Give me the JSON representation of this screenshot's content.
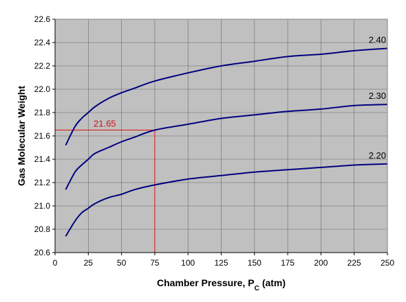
{
  "chart_data": {
    "type": "line",
    "title": "",
    "xlabel": "Chamber Pressure, P",
    "xlabel_subscript": "C",
    "xlabel_suffix": "(atm)",
    "ylabel": "Gas Molecular Weight",
    "xlim": [
      0,
      250
    ],
    "ylim": [
      20.6,
      22.6
    ],
    "xticks": [
      "0",
      "25",
      "50",
      "75",
      "100",
      "125",
      "150",
      "175",
      "200",
      "225",
      "250"
    ],
    "yticks": [
      "20.6",
      "20.8",
      "21.0",
      "21.2",
      "21.4",
      "21.6",
      "21.8",
      "22.0",
      "22.2",
      "22.4",
      "22.6"
    ],
    "grid": true,
    "plot_background": "#c0c0c0",
    "series_color": "#000080",
    "series": [
      {
        "name": "2.40",
        "x": [
          8,
          15,
          20,
          25,
          30,
          40,
          50,
          60,
          75,
          100,
          125,
          150,
          175,
          200,
          225,
          250
        ],
        "y": [
          21.52,
          21.68,
          21.75,
          21.8,
          21.85,
          21.92,
          21.97,
          22.01,
          22.07,
          22.14,
          22.2,
          22.24,
          22.28,
          22.3,
          22.33,
          22.35
        ]
      },
      {
        "name": "2.30",
        "x": [
          8,
          15,
          20,
          25,
          30,
          40,
          50,
          60,
          75,
          100,
          125,
          150,
          175,
          200,
          225,
          250
        ],
        "y": [
          21.14,
          21.29,
          21.35,
          21.4,
          21.45,
          21.5,
          21.55,
          21.59,
          21.65,
          21.7,
          21.75,
          21.78,
          21.81,
          21.83,
          21.86,
          21.87
        ]
      },
      {
        "name": "2.20",
        "x": [
          8,
          15,
          20,
          25,
          30,
          40,
          50,
          60,
          75,
          100,
          125,
          150,
          175,
          200,
          225,
          250
        ],
        "y": [
          20.74,
          20.87,
          20.94,
          20.98,
          21.02,
          21.07,
          21.1,
          21.14,
          21.18,
          21.23,
          21.26,
          21.29,
          21.31,
          21.33,
          21.35,
          21.36
        ]
      }
    ],
    "annotation": {
      "x": 75,
      "y": 21.65,
      "label": "21.65",
      "color": "#e01010"
    }
  }
}
